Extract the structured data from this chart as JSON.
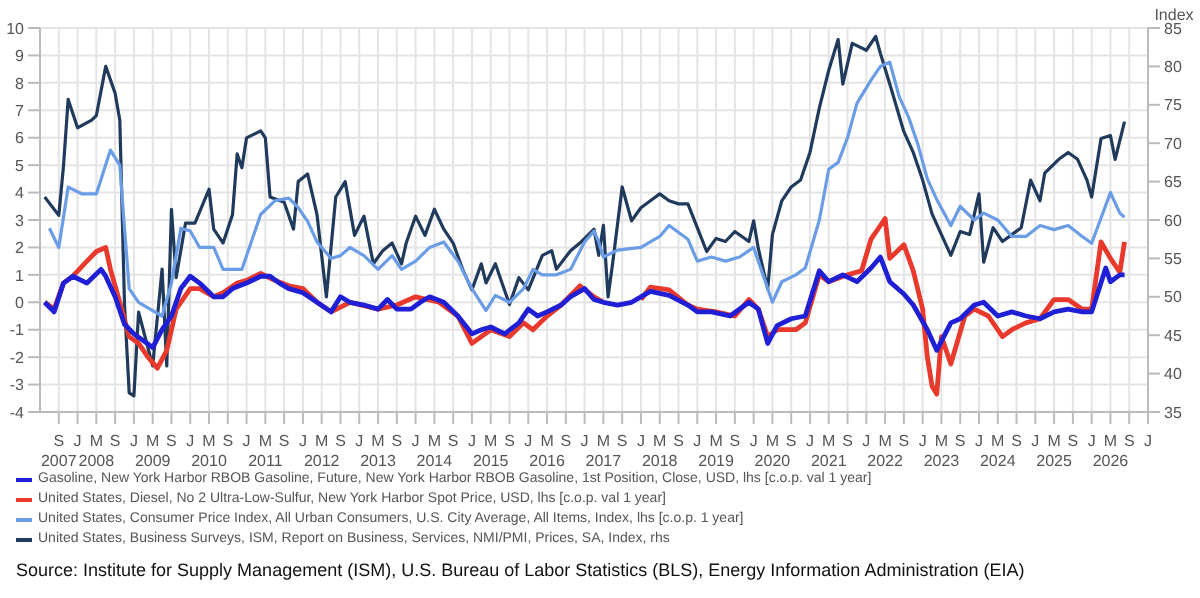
{
  "chart_data": {
    "type": "line",
    "y2label": "Index",
    "legend": "bottom",
    "grid": true,
    "marker": "none",
    "line_style": "solid",
    "annotations": [
      "Source: Institute for Supply Management (ISM), U.S. Bureau of Labor Statistics (BLS), Energy Information Administration (EIA)"
    ],
    "xlim": [
      "2007-05",
      "2027-01"
    ],
    "xticks": [
      {
        "value": "2007-09",
        "label": "S\n2007"
      },
      {
        "value": "2008-01",
        "label": "J"
      },
      {
        "value": "2008-05",
        "label": "M\n2008"
      },
      {
        "value": "2008-09",
        "label": "S"
      },
      {
        "value": "2009-01",
        "label": "J"
      },
      {
        "value": "2009-05",
        "label": "M\n2009"
      },
      {
        "value": "2009-09",
        "label": "S"
      },
      {
        "value": "2010-01",
        "label": "J"
      },
      {
        "value": "2010-05",
        "label": "M\n2010"
      },
      {
        "value": "2010-09",
        "label": "S"
      },
      {
        "value": "2011-01",
        "label": "J"
      },
      {
        "value": "2011-05",
        "label": "M\n2011"
      },
      {
        "value": "2011-09",
        "label": "S"
      },
      {
        "value": "2012-01",
        "label": "J"
      },
      {
        "value": "2012-05",
        "label": "M\n2012"
      },
      {
        "value": "2012-09",
        "label": "S"
      },
      {
        "value": "2013-01",
        "label": "J"
      },
      {
        "value": "2013-05",
        "label": "M\n2013"
      },
      {
        "value": "2013-09",
        "label": "S"
      },
      {
        "value": "2014-01",
        "label": "J"
      },
      {
        "value": "2014-05",
        "label": "M\n2014"
      },
      {
        "value": "2014-09",
        "label": "S"
      },
      {
        "value": "2015-01",
        "label": "J"
      },
      {
        "value": "2015-05",
        "label": "M\n2015"
      },
      {
        "value": "2015-09",
        "label": "S"
      },
      {
        "value": "2016-01",
        "label": "J"
      },
      {
        "value": "2016-05",
        "label": "M\n2016"
      },
      {
        "value": "2016-09",
        "label": "S"
      },
      {
        "value": "2017-01",
        "label": "J"
      },
      {
        "value": "2017-05",
        "label": "M\n2017"
      },
      {
        "value": "2017-09",
        "label": "S"
      },
      {
        "value": "2018-01",
        "label": "J"
      },
      {
        "value": "2018-05",
        "label": "M\n2018"
      },
      {
        "value": "2018-09",
        "label": "S"
      },
      {
        "value": "2019-01",
        "label": "J"
      },
      {
        "value": "2019-05",
        "label": "M\n2019"
      },
      {
        "value": "2019-09",
        "label": "S"
      },
      {
        "value": "2020-01",
        "label": "J"
      },
      {
        "value": "2020-05",
        "label": "M\n2020"
      },
      {
        "value": "2020-09",
        "label": "S"
      },
      {
        "value": "2021-01",
        "label": "J"
      },
      {
        "value": "2021-05",
        "label": "M\n2021"
      },
      {
        "value": "2021-09",
        "label": "S"
      },
      {
        "value": "2022-01",
        "label": "J"
      },
      {
        "value": "2022-05",
        "label": "M\n2022"
      },
      {
        "value": "2022-09",
        "label": "S"
      },
      {
        "value": "2023-01",
        "label": "J"
      },
      {
        "value": "2023-05",
        "label": "M\n2023"
      },
      {
        "value": "2023-09",
        "label": "S"
      },
      {
        "value": "2024-01",
        "label": "J"
      },
      {
        "value": "2024-05",
        "label": "M\n2024"
      },
      {
        "value": "2024-09",
        "label": "S"
      },
      {
        "value": "2025-01",
        "label": "J"
      },
      {
        "value": "2025-05",
        "label": "M\n2025"
      },
      {
        "value": "2025-09",
        "label": "S"
      },
      {
        "value": "2026-01",
        "label": "J"
      },
      {
        "value": "2026-05",
        "label": "M\n2026"
      },
      {
        "value": "2026-09",
        "label": "S"
      },
      {
        "value": "2027-01",
        "label": "J"
      }
    ],
    "ylim": [
      -4,
      10
    ],
    "yticks": [
      -4,
      -3,
      -2,
      -1,
      0,
      1,
      2,
      3,
      4,
      5,
      6,
      7,
      8,
      9,
      10
    ],
    "y2lim": [
      35,
      85
    ],
    "y2ticks": [
      35,
      40,
      45,
      50,
      55,
      60,
      65,
      70,
      75,
      80,
      85
    ],
    "series": [
      {
        "name": "Gasoline, New York Harbor RBOB Gasoline, Future, New York Harbor RBOB Gasoline, 1st Position, Close, USD, lhs [c.o.p. val 1 year]",
        "color": "#1f1fd6",
        "x": [
          "2007-06",
          "2007-08",
          "2007-10",
          "2007-12",
          "2008-03",
          "2008-06",
          "2008-07",
          "2008-09",
          "2008-11",
          "2009-01",
          "2009-03",
          "2009-05",
          "2009-07",
          "2009-09",
          "2009-11",
          "2010-01",
          "2010-03",
          "2010-06",
          "2010-08",
          "2010-10",
          "2011-01",
          "2011-04",
          "2011-06",
          "2011-08",
          "2011-10",
          "2012-01",
          "2012-04",
          "2012-07",
          "2012-09",
          "2012-11",
          "2013-02",
          "2013-05",
          "2013-07",
          "2013-09",
          "2013-12",
          "2014-02",
          "2014-04",
          "2014-07",
          "2014-10",
          "2015-01",
          "2015-03",
          "2015-05",
          "2015-08",
          "2015-11",
          "2016-01",
          "2016-03",
          "2016-05",
          "2016-08",
          "2016-10",
          "2017-01",
          "2017-03",
          "2017-05",
          "2017-08",
          "2017-11",
          "2018-03",
          "2018-07",
          "2018-11",
          "2019-01",
          "2019-04",
          "2019-08",
          "2019-12",
          "2020-02",
          "2020-04",
          "2020-06",
          "2020-09",
          "2020-12",
          "2021-03",
          "2021-05",
          "2021-08",
          "2021-11",
          "2022-02",
          "2022-04",
          "2022-06",
          "2022-09",
          "2022-11",
          "2023-02",
          "2023-04",
          "2023-07",
          "2023-09",
          "2023-12",
          "2024-02",
          "2024-05",
          "2024-08",
          "2024-11",
          "2025-02",
          "2025-05",
          "2025-08",
          "2025-11",
          "2026-01",
          "2026-04",
          "2026-05",
          "2026-07",
          "2026-08"
        ],
        "values": [
          0,
          -0.35,
          0.7,
          0.95,
          0.7,
          1.2,
          0.95,
          0.2,
          -0.8,
          -1.15,
          -1.4,
          -1.65,
          -1.0,
          -0.5,
          0.5,
          0.95,
          0.7,
          0.2,
          0.2,
          0.5,
          0.7,
          0.95,
          0.95,
          0.7,
          0.5,
          0.35,
          0,
          -0.35,
          0.2,
          0,
          -0.1,
          -0.25,
          0.1,
          -0.25,
          -0.25,
          0,
          0.2,
          0,
          -0.5,
          -1.15,
          -1.0,
          -0.9,
          -1.15,
          -0.75,
          -0.25,
          -0.5,
          -0.35,
          -0.1,
          0.2,
          0.5,
          0.1,
          0,
          -0.1,
          0,
          0.4,
          0.25,
          -0.1,
          -0.35,
          -0.35,
          -0.5,
          0,
          -0.25,
          -1.5,
          -0.85,
          -0.6,
          -0.5,
          1.15,
          0.75,
          1.0,
          0.75,
          1.25,
          1.65,
          0.75,
          0.3,
          -0.1,
          -1.0,
          -1.75,
          -0.75,
          -0.6,
          -0.1,
          0,
          -0.5,
          -0.35,
          -0.5,
          -0.6,
          -0.35,
          -0.25,
          -0.35,
          -0.35,
          1.25,
          0.75,
          1.0,
          1.0
        ]
      },
      {
        "name": "United States, Diesel, No 2 Ultra-Low-Sulfur, New York Harbor Spot Price, USD, lhs [c.o.p. val 1 year]",
        "color": "#e8392c",
        "x": [
          "2007-06",
          "2007-08",
          "2007-10",
          "2007-12",
          "2008-03",
          "2008-05",
          "2008-07",
          "2008-08",
          "2008-10",
          "2008-12",
          "2009-02",
          "2009-04",
          "2009-06",
          "2009-08",
          "2009-10",
          "2010-01",
          "2010-03",
          "2010-06",
          "2010-08",
          "2010-11",
          "2011-01",
          "2011-04",
          "2011-07",
          "2011-10",
          "2012-01",
          "2012-04",
          "2012-07",
          "2012-11",
          "2013-05",
          "2013-09",
          "2014-01",
          "2014-06",
          "2014-10",
          "2015-01",
          "2015-05",
          "2015-09",
          "2015-12",
          "2016-02",
          "2016-05",
          "2016-08",
          "2016-12",
          "2017-03",
          "2017-05",
          "2017-08",
          "2018-01",
          "2018-03",
          "2018-07",
          "2018-11",
          "2019-01",
          "2019-05",
          "2019-09",
          "2019-12",
          "2020-02",
          "2020-04",
          "2020-06",
          "2020-10",
          "2020-12",
          "2021-03",
          "2021-05",
          "2021-09",
          "2021-12",
          "2022-02",
          "2022-04",
          "2022-05",
          "2022-06",
          "2022-09",
          "2022-11",
          "2023-01",
          "2023-02",
          "2023-03",
          "2023-04",
          "2023-05",
          "2023-07",
          "2023-10",
          "2023-12",
          "2024-03",
          "2024-06",
          "2024-08",
          "2024-11",
          "2025-02",
          "2025-05",
          "2025-08",
          "2025-11",
          "2026-01",
          "2026-03",
          "2026-05",
          "2026-07",
          "2026-08"
        ],
        "values": [
          0,
          -0.25,
          0.7,
          0.95,
          1.5,
          1.85,
          2.0,
          1.2,
          0,
          -1.25,
          -1.5,
          -2.0,
          -2.4,
          -1.75,
          -0.25,
          0.5,
          0.5,
          0.2,
          0.35,
          0.7,
          0.8,
          1.05,
          0.8,
          0.6,
          0.5,
          0,
          -0.35,
          0,
          -0.25,
          -0.1,
          0.2,
          0,
          -0.5,
          -1.5,
          -1.0,
          -1.25,
          -0.75,
          -1.0,
          -0.5,
          -0.1,
          0.6,
          0.2,
          0,
          null,
          0.1,
          0.55,
          0.45,
          -0.1,
          -0.25,
          -0.35,
          -0.5,
          0.1,
          -0.25,
          -1.25,
          -1.0,
          -1.0,
          -0.75,
          1.0,
          0.75,
          1.0,
          1.15,
          2.3,
          2.8,
          3.05,
          1.6,
          2.1,
          1.15,
          -0.25,
          -2.0,
          -3.05,
          -3.35,
          -1.25,
          -2.25,
          -0.5,
          -0.25,
          -0.5,
          -1.25,
          -1.0,
          -0.75,
          -0.6,
          0.1,
          0.1,
          -0.25,
          -0.25,
          2.2,
          1.6,
          1.1,
          2.2
        ]
      },
      {
        "name": "United States, Consumer Price Index, All Urban Consumers, U.S. City Average, All Items, Index, lhs [c.o.p. 1 year]",
        "color": "#6b9de6",
        "x": [
          "2007-07",
          "2007-09",
          "2007-11",
          "2008-02",
          "2008-05",
          "2008-08",
          "2008-10",
          "2008-11",
          "2008-12",
          "2009-02",
          "2009-05",
          "2009-07",
          "2009-09",
          "2009-11",
          "2010-01",
          "2010-03",
          "2010-06",
          "2010-08",
          "2010-10",
          "2010-12",
          "2011-02",
          "2011-04",
          "2011-07",
          "2011-10",
          "2011-12",
          "2012-02",
          "2012-04",
          "2012-07",
          "2012-09",
          "2012-11",
          "2013-02",
          "2013-05",
          "2013-08",
          "2013-10",
          "2014-01",
          "2014-04",
          "2014-07",
          "2014-10",
          "2015-01",
          "2015-04",
          "2015-06",
          "2015-09",
          "2015-12",
          "2016-02",
          "2016-04",
          "2016-07",
          "2016-10",
          "2017-01",
          "2017-03",
          "2017-04",
          "2017-05",
          "2017-08",
          "2018-01",
          "2018-05",
          "2018-07",
          "2018-11",
          "2019-01",
          "2019-04",
          "2019-07",
          "2019-10",
          "2020-01",
          "2020-03",
          "2020-05",
          "2020-07",
          "2020-10",
          "2020-12",
          "2021-03",
          "2021-05",
          "2021-07",
          "2021-09",
          "2021-11",
          "2022-02",
          "2022-04",
          "2022-06",
          "2022-08",
          "2022-10",
          "2022-12",
          "2023-02",
          "2023-04",
          "2023-07",
          "2023-09",
          "2023-12",
          "2024-02",
          "2024-05",
          "2024-08",
          "2024-11",
          "2025-02",
          "2025-05",
          "2025-08",
          "2025-11",
          "2026-01",
          "2026-05",
          "2026-07",
          "2026-08"
        ],
        "values": [
          2.7,
          2.0,
          4.2,
          3.95,
          3.95,
          5.55,
          5.0,
          2.7,
          0.5,
          0,
          -0.3,
          -0.5,
          0.7,
          2.7,
          2.6,
          2.0,
          2.0,
          1.2,
          1.2,
          1.2,
          2.2,
          3.2,
          3.7,
          3.8,
          3.45,
          2.95,
          2.2,
          1.6,
          1.7,
          2.0,
          1.7,
          1.2,
          1.7,
          1.2,
          1.5,
          2.0,
          2.2,
          1.5,
          0.5,
          -0.3,
          0.25,
          0,
          0.5,
          1.2,
          1.0,
          1.0,
          1.2,
          2.2,
          2.6,
          2.2,
          1.65,
          1.9,
          2.0,
          2.4,
          2.8,
          2.3,
          1.5,
          1.65,
          1.5,
          1.65,
          2.0,
          1.0,
          0,
          0.75,
          1.0,
          1.25,
          3.0,
          4.85,
          5.1,
          6.0,
          7.25,
          8.1,
          8.6,
          8.75,
          7.5,
          6.75,
          5.75,
          4.5,
          3.75,
          2.8,
          3.5,
          3.0,
          3.25,
          3.0,
          2.4,
          2.4,
          2.8,
          2.65,
          2.8,
          2.4,
          2.15,
          4.0,
          3.25,
          3.1
        ]
      },
      {
        "name": "United States, Business Surveys, ISM, Report on Business, Services, NMI/PMI, Prices, SA, Index, rhs",
        "color": "#203a5c",
        "axis": "y2",
        "x": [
          "2007-06",
          "2007-09",
          "2007-10",
          "2007-11",
          "2008-01",
          "2008-04",
          "2008-05",
          "2008-07",
          "2008-09",
          "2008-10",
          "2008-11",
          "2008-12",
          "2009-01",
          "2009-02",
          "2009-05",
          "2009-07",
          "2009-08",
          "2009-09",
          "2009-10",
          "2009-12",
          "2010-02",
          "2010-05",
          "2010-06",
          "2010-08",
          "2010-10",
          "2010-11",
          "2010-12",
          "2011-01",
          "2011-04",
          "2011-05",
          "2011-06",
          "2011-09",
          "2011-11",
          "2011-12",
          "2012-02",
          "2012-04",
          "2012-06",
          "2012-08",
          "2012-10",
          "2012-12",
          "2013-02",
          "2013-04",
          "2013-06",
          "2013-08",
          "2013-10",
          "2013-11",
          "2014-01",
          "2014-03",
          "2014-05",
          "2014-07",
          "2014-09",
          "2014-11",
          "2015-01",
          "2015-03",
          "2015-04",
          "2015-06",
          "2015-07",
          "2015-09",
          "2015-11",
          "2016-01",
          "2016-04",
          "2016-06",
          "2016-07",
          "2016-10",
          "2016-12",
          "2017-03",
          "2017-04",
          "2017-05",
          "2017-06",
          "2017-07",
          "2017-09",
          "2017-11",
          "2018-01",
          "2018-03",
          "2018-05",
          "2018-07",
          "2018-09",
          "2018-11",
          "2019-01",
          "2019-03",
          "2019-05",
          "2019-07",
          "2019-09",
          "2019-12",
          "2020-01",
          "2020-02",
          "2020-04",
          "2020-05",
          "2020-06",
          "2020-07",
          "2020-09",
          "2020-11",
          "2021-01",
          "2021-03",
          "2021-05",
          "2021-07",
          "2021-08",
          "2021-10",
          "2022-01",
          "2022-03",
          "2022-04",
          "2022-06",
          "2022-09",
          "2022-11",
          "2023-01",
          "2023-03",
          "2023-05",
          "2023-07",
          "2023-09",
          "2023-11",
          "2024-01",
          "2024-02",
          "2024-04",
          "2024-06",
          "2024-08",
          "2024-10",
          "2024-12",
          "2025-02",
          "2025-03",
          "2025-06",
          "2025-08",
          "2025-10",
          "2025-12",
          "2026-01",
          "2026-03",
          "2026-05",
          "2026-06",
          "2026-08"
        ],
        "values": [
          63,
          60.6,
          67,
          75.7,
          72,
          73,
          73.6,
          80,
          76.5,
          73,
          49,
          37.5,
          37.1,
          48,
          41,
          53.6,
          41,
          61.4,
          52.5,
          59.6,
          59.6,
          64,
          58.8,
          57,
          60.7,
          68.6,
          66.8,
          70.7,
          71.6,
          70.7,
          63,
          62.3,
          58.8,
          65,
          66,
          60.7,
          50,
          63,
          65,
          58,
          60.5,
          54.3,
          56,
          57,
          54.3,
          57,
          60.5,
          58,
          61.4,
          58.8,
          57,
          53.6,
          50.9,
          54.3,
          51.8,
          54.3,
          52.5,
          49,
          52.5,
          50.9,
          55.4,
          56,
          53.6,
          56,
          57,
          58.8,
          55.4,
          59.3,
          50,
          54.5,
          64.3,
          59.9,
          61.6,
          62.5,
          63.4,
          62.5,
          62.1,
          62.1,
          59,
          55.9,
          57.6,
          57.2,
          58.5,
          57.2,
          59.9,
          56.3,
          51,
          58.1,
          60.3,
          62.5,
          64.3,
          65.2,
          68.8,
          74.6,
          79.5,
          83.5,
          77.7,
          83,
          82.1,
          83.9,
          81.7,
          77.7,
          71.5,
          68.8,
          65.2,
          60.8,
          58.1,
          55.4,
          58.5,
          58.1,
          63.4,
          54.5,
          59,
          57.2,
          58.1,
          59,
          65.2,
          62.5,
          66.1,
          67.9,
          68.8,
          67.9,
          65.2,
          63,
          70.6,
          71,
          67.9,
          72.8
        ]
      }
    ]
  }
}
